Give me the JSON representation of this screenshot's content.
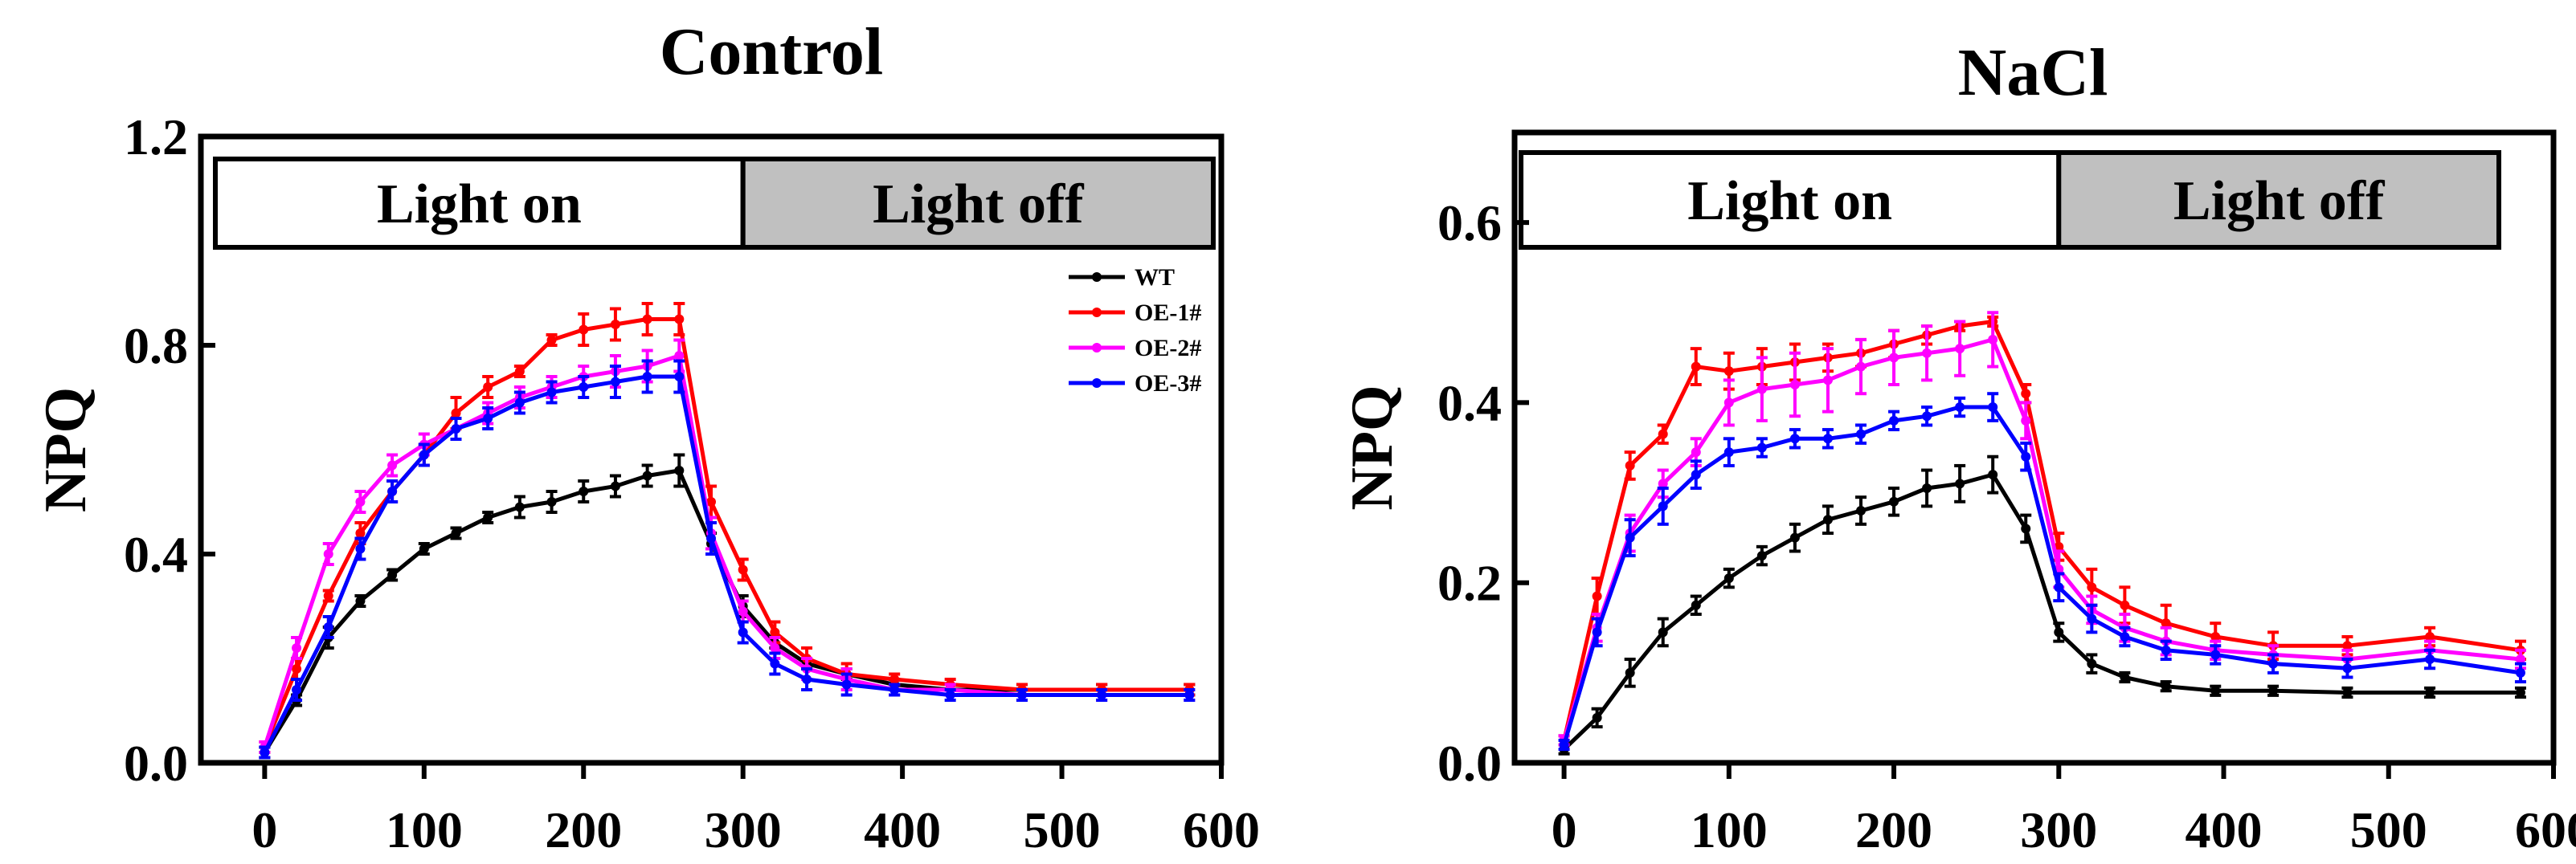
{
  "chart_data": [
    {
      "type": "line",
      "title": "Control",
      "xlabel": "",
      "ylabel": "NPQ",
      "xlim": [
        -40,
        600
      ],
      "ylim": [
        0,
        1.2
      ],
      "x_ticks": [
        "0",
        "100",
        "200",
        "300",
        "400",
        "500",
        "600"
      ],
      "y_ticks": [
        "0.0",
        "0.4",
        "0.8",
        "1.2"
      ],
      "y_tick_values": [
        0,
        0.4,
        0.8,
        1.2
      ],
      "x_tick_values": [
        0,
        100,
        200,
        300,
        400,
        500,
        600
      ],
      "banner": {
        "on_label": "Light on",
        "off_label": "Light off",
        "switch_x": 300
      },
      "legend_position": "right, inside",
      "x": [
        0,
        20,
        40,
        60,
        80,
        100,
        120,
        140,
        160,
        180,
        200,
        220,
        240,
        260,
        280,
        300,
        320,
        340,
        365,
        395,
        430,
        475,
        525,
        580
      ],
      "series": [
        {
          "name": "WT",
          "color": "#000000",
          "values": [
            0.02,
            0.12,
            0.24,
            0.31,
            0.36,
            0.41,
            0.44,
            0.47,
            0.49,
            0.5,
            0.52,
            0.53,
            0.55,
            0.56,
            0.42,
            0.3,
            0.23,
            0.19,
            0.17,
            0.15,
            0.14,
            0.14,
            0.14,
            0.14
          ],
          "errors": [
            0.01,
            0.01,
            0.02,
            0.01,
            0.01,
            0.01,
            0.01,
            0.01,
            0.02,
            0.02,
            0.02,
            0.02,
            0.02,
            0.03,
            0.02,
            0.02,
            0.01,
            0.01,
            0.01,
            0.01,
            0.01,
            0.01,
            0.01,
            0.01
          ]
        },
        {
          "name": "OE-1#",
          "color": "#ff0000",
          "values": [
            0.03,
            0.18,
            0.32,
            0.44,
            0.52,
            0.59,
            0.67,
            0.72,
            0.75,
            0.81,
            0.83,
            0.84,
            0.85,
            0.85,
            0.5,
            0.37,
            0.25,
            0.2,
            0.17,
            0.16,
            0.15,
            0.14,
            0.14,
            0.14
          ],
          "errors": [
            0.01,
            0.02,
            0.01,
            0.02,
            0.02,
            0.02,
            0.03,
            0.02,
            0.01,
            0.01,
            0.03,
            0.03,
            0.03,
            0.03,
            0.03,
            0.02,
            0.02,
            0.02,
            0.02,
            0.01,
            0.01,
            0.01,
            0.01,
            0.01
          ]
        },
        {
          "name": "OE-2#",
          "color": "#ff00ff",
          "values": [
            0.03,
            0.22,
            0.4,
            0.5,
            0.57,
            0.61,
            0.64,
            0.67,
            0.7,
            0.72,
            0.74,
            0.75,
            0.76,
            0.78,
            0.44,
            0.29,
            0.22,
            0.18,
            0.16,
            0.14,
            0.14,
            0.13,
            0.13,
            0.13
          ],
          "errors": [
            0.01,
            0.02,
            0.02,
            0.02,
            0.02,
            0.02,
            0.02,
            0.02,
            0.02,
            0.02,
            0.02,
            0.03,
            0.03,
            0.03,
            0.03,
            0.02,
            0.02,
            0.02,
            0.02,
            0.01,
            0.01,
            0.01,
            0.01,
            0.01
          ]
        },
        {
          "name": "OE-3#",
          "color": "#0000ff",
          "values": [
            0.02,
            0.14,
            0.26,
            0.41,
            0.52,
            0.59,
            0.64,
            0.66,
            0.69,
            0.71,
            0.72,
            0.73,
            0.74,
            0.74,
            0.43,
            0.25,
            0.19,
            0.16,
            0.15,
            0.14,
            0.13,
            0.13,
            0.13,
            0.13
          ],
          "errors": [
            0.01,
            0.02,
            0.02,
            0.02,
            0.02,
            0.02,
            0.02,
            0.02,
            0.02,
            0.02,
            0.02,
            0.03,
            0.03,
            0.03,
            0.03,
            0.02,
            0.02,
            0.02,
            0.02,
            0.01,
            0.01,
            0.01,
            0.01,
            0.01
          ]
        }
      ]
    },
    {
      "type": "line",
      "title": "NaCl",
      "xlabel": "",
      "ylabel": "NPQ",
      "xlim": [
        -30,
        600
      ],
      "ylim": [
        0,
        0.7
      ],
      "x_ticks": [
        "0",
        "100",
        "200",
        "300",
        "400",
        "500",
        "600"
      ],
      "y_ticks": [
        "0.0",
        "0.2",
        "0.4",
        "0.6"
      ],
      "y_tick_values": [
        0,
        0.2,
        0.4,
        0.6
      ],
      "x_tick_values": [
        0,
        100,
        200,
        300,
        400,
        500,
        600
      ],
      "banner": {
        "on_label": "Light on",
        "off_label": "Light off",
        "switch_x": 300
      },
      "x": [
        0,
        20,
        40,
        60,
        80,
        100,
        120,
        140,
        160,
        180,
        200,
        220,
        240,
        260,
        280,
        300,
        320,
        340,
        365,
        395,
        430,
        475,
        525,
        580
      ],
      "series": [
        {
          "name": "WT",
          "color": "#000000",
          "values": [
            0.015,
            0.05,
            0.1,
            0.145,
            0.175,
            0.205,
            0.23,
            0.25,
            0.27,
            0.28,
            0.29,
            0.305,
            0.31,
            0.32,
            0.26,
            0.145,
            0.11,
            0.095,
            0.085,
            0.08,
            0.08,
            0.078,
            0.078,
            0.078
          ],
          "errors": [
            0.005,
            0.01,
            0.015,
            0.015,
            0.01,
            0.01,
            0.01,
            0.015,
            0.015,
            0.015,
            0.015,
            0.02,
            0.02,
            0.02,
            0.015,
            0.01,
            0.01,
            0.005,
            0.005,
            0.005,
            0.005,
            0.005,
            0.005,
            0.005
          ]
        },
        {
          "name": "OE-1#",
          "color": "#ff0000",
          "values": [
            0.025,
            0.185,
            0.33,
            0.365,
            0.44,
            0.435,
            0.44,
            0.445,
            0.45,
            0.455,
            0.465,
            0.475,
            0.485,
            0.49,
            0.41,
            0.24,
            0.195,
            0.175,
            0.155,
            0.14,
            0.13,
            0.13,
            0.14,
            0.125
          ],
          "errors": [
            0.005,
            0.02,
            0.015,
            0.01,
            0.02,
            0.02,
            0.02,
            0.02,
            0.015,
            0.015,
            0.015,
            0.01,
            0.005,
            0.005,
            0.01,
            0.015,
            0.02,
            0.02,
            0.02,
            0.015,
            0.015,
            0.01,
            0.01,
            0.01
          ]
        },
        {
          "name": "OE-2#",
          "color": "#ff00ff",
          "values": [
            0.025,
            0.15,
            0.255,
            0.31,
            0.345,
            0.4,
            0.415,
            0.42,
            0.425,
            0.44,
            0.45,
            0.455,
            0.46,
            0.47,
            0.38,
            0.215,
            0.17,
            0.15,
            0.135,
            0.125,
            0.12,
            0.115,
            0.125,
            0.115
          ],
          "errors": [
            0.005,
            0.015,
            0.02,
            0.015,
            0.015,
            0.025,
            0.035,
            0.035,
            0.035,
            0.03,
            0.03,
            0.03,
            0.03,
            0.03,
            0.02,
            0.02,
            0.015,
            0.015,
            0.015,
            0.01,
            0.01,
            0.01,
            0.01,
            0.01
          ]
        },
        {
          "name": "OE-3#",
          "color": "#0000ff",
          "values": [
            0.02,
            0.145,
            0.25,
            0.285,
            0.32,
            0.345,
            0.35,
            0.36,
            0.36,
            0.365,
            0.38,
            0.385,
            0.395,
            0.395,
            0.34,
            0.195,
            0.16,
            0.14,
            0.125,
            0.12,
            0.11,
            0.105,
            0.115,
            0.1
          ],
          "errors": [
            0.005,
            0.015,
            0.02,
            0.02,
            0.015,
            0.015,
            0.01,
            0.01,
            0.01,
            0.01,
            0.01,
            0.01,
            0.01,
            0.015,
            0.015,
            0.015,
            0.015,
            0.01,
            0.01,
            0.01,
            0.01,
            0.01,
            0.01,
            0.01
          ]
        }
      ]
    }
  ]
}
